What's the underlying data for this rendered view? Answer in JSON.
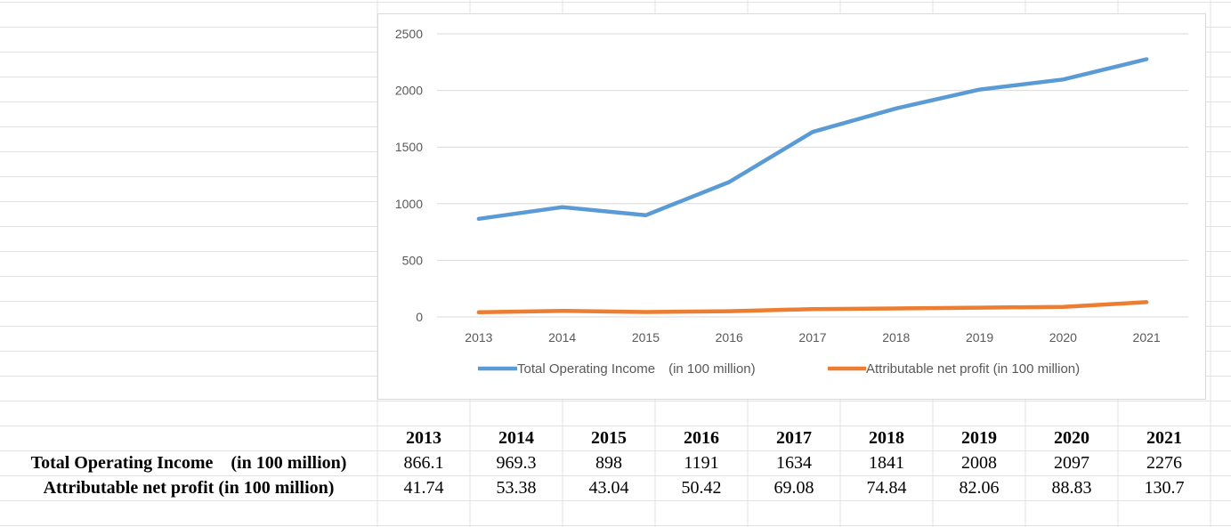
{
  "colors": {
    "income": "#5b9bd5",
    "profit": "#ed7d31",
    "gridline": "#d9d9d9",
    "cellgrid": "#e2e2e2"
  },
  "chart_data": {
    "type": "line",
    "categories": [
      "2013",
      "2014",
      "2015",
      "2016",
      "2017",
      "2018",
      "2019",
      "2020",
      "2021"
    ],
    "series": [
      {
        "name": "Total Operating Income　(in 100 million)",
        "values": [
          866.1,
          969.3,
          898,
          1191,
          1634,
          1841,
          2008,
          2097,
          2276
        ]
      },
      {
        "name": "Attributable net profit (in 100 million)",
        "values": [
          41.74,
          53.38,
          43.04,
          50.42,
          69.08,
          74.84,
          82.06,
          88.83,
          130.7
        ]
      }
    ],
    "y_ticks": [
      0,
      500,
      1000,
      1500,
      2000,
      2500
    ],
    "ylim": [
      0,
      2500
    ],
    "grid": true,
    "legend_position": "bottom"
  },
  "table": {
    "years": [
      "2013",
      "2014",
      "2015",
      "2016",
      "2017",
      "2018",
      "2019",
      "2020",
      "2021"
    ],
    "rows": [
      {
        "label": "Total Operating Income　(in 100 million)",
        "values": [
          "866.1",
          "969.3",
          "898",
          "1191",
          "1634",
          "1841",
          "2008",
          "2097",
          "2276"
        ]
      },
      {
        "label": "Attributable net profit (in 100 million)",
        "values": [
          "41.74",
          "53.38",
          "43.04",
          "50.42",
          "69.08",
          "74.84",
          "82.06",
          "88.83",
          "130.7"
        ]
      }
    ]
  }
}
